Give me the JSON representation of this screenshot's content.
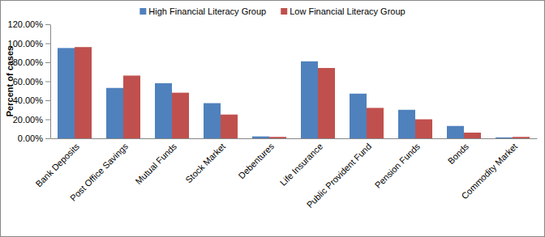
{
  "chart_data": {
    "type": "bar",
    "y_label": "Percent of cases",
    "categories": [
      "Bank Deposits",
      "Post Office Savings",
      "Mutual Funds",
      "Stock Market",
      "Debentures",
      "Life Insurance",
      "Public Provident Fund",
      "Pension Funds",
      "Bonds",
      "Commodity Market"
    ],
    "series": [
      {
        "name": "High Financial Literacy Group",
        "color": "#4f81bd",
        "values": [
          95,
          53,
          58,
          37,
          2,
          81,
          47,
          30,
          13,
          1
        ]
      },
      {
        "name": "Low Financial Literacy Group",
        "color": "#c0504d",
        "values": [
          96,
          66,
          48,
          25,
          1.5,
          74,
          32,
          20,
          6,
          1.5
        ]
      }
    ],
    "ylim": [
      0,
      120
    ],
    "yticks": [
      {
        "value": 0,
        "label": "0.00%"
      },
      {
        "value": 20,
        "label": "20.00%"
      },
      {
        "value": 40,
        "label": "40.00%"
      },
      {
        "value": 60,
        "label": "60.00%"
      },
      {
        "value": 80,
        "label": "80.00%"
      },
      {
        "value": 100,
        "label": "100.00%"
      },
      {
        "value": 120,
        "label": "120.00%"
      }
    ],
    "grid": false,
    "legend": "top"
  }
}
